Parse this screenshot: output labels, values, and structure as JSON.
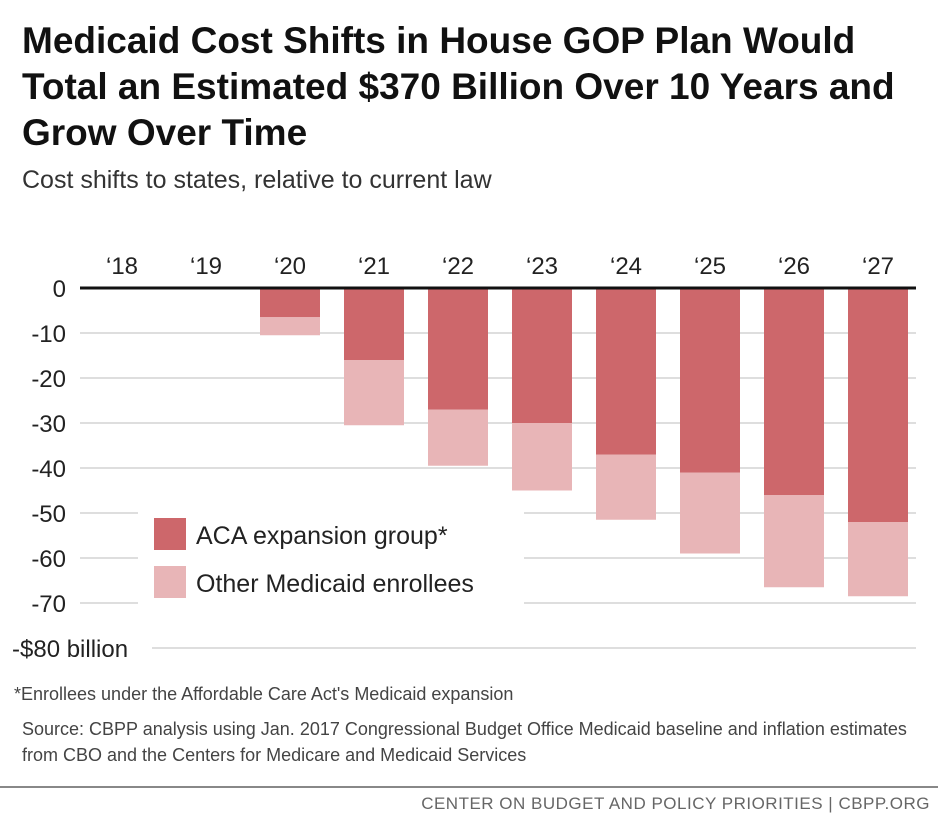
{
  "chart_data": {
    "type": "bar",
    "stacked": true,
    "title": "Medicaid Cost Shifts in House GOP Plan Would Total an Estimated $370 Billion Over 10 Years and Grow Over Time",
    "subtitle": "Cost shifts to states, relative to current law",
    "categories": [
      "‘18",
      "‘19",
      "‘20",
      "‘21",
      "‘22",
      "‘23",
      "‘24",
      "‘25",
      "‘26",
      "‘27"
    ],
    "series": [
      {
        "name": "ACA expansion group*",
        "color": "#cd676b",
        "values": [
          0,
          0,
          -6.5,
          -16,
          -27,
          -30,
          -37,
          -41,
          -46,
          -52
        ]
      },
      {
        "name": "Other Medicaid enrollees",
        "color": "#e8b5b7",
        "values": [
          0,
          0,
          -4,
          -14.5,
          -12.5,
          -15,
          -14.5,
          -18,
          -20.5,
          -16.5
        ]
      }
    ],
    "y_ticks": [
      "0",
      "-10",
      "-20",
      "-30",
      "-40",
      "-50",
      "-60",
      "-70",
      "-$80 billion"
    ],
    "y_tick_values": [
      0,
      -10,
      -20,
      -30,
      -40,
      -50,
      -60,
      -70,
      -80
    ],
    "ylim": [
      -80,
      0
    ],
    "legend_position": "bottom-left"
  },
  "footnote": "*Enrollees under the Affordable Care Act's Medicaid expansion",
  "source": "Source: CBPP analysis using Jan. 2017 Congressional Budget Office Medicaid baseline and inflation estimates from CBO and the Centers for Medicare and Medicaid Services",
  "organization": "CENTER ON BUDGET AND POLICY PRIORITIES | CBPP.ORG"
}
